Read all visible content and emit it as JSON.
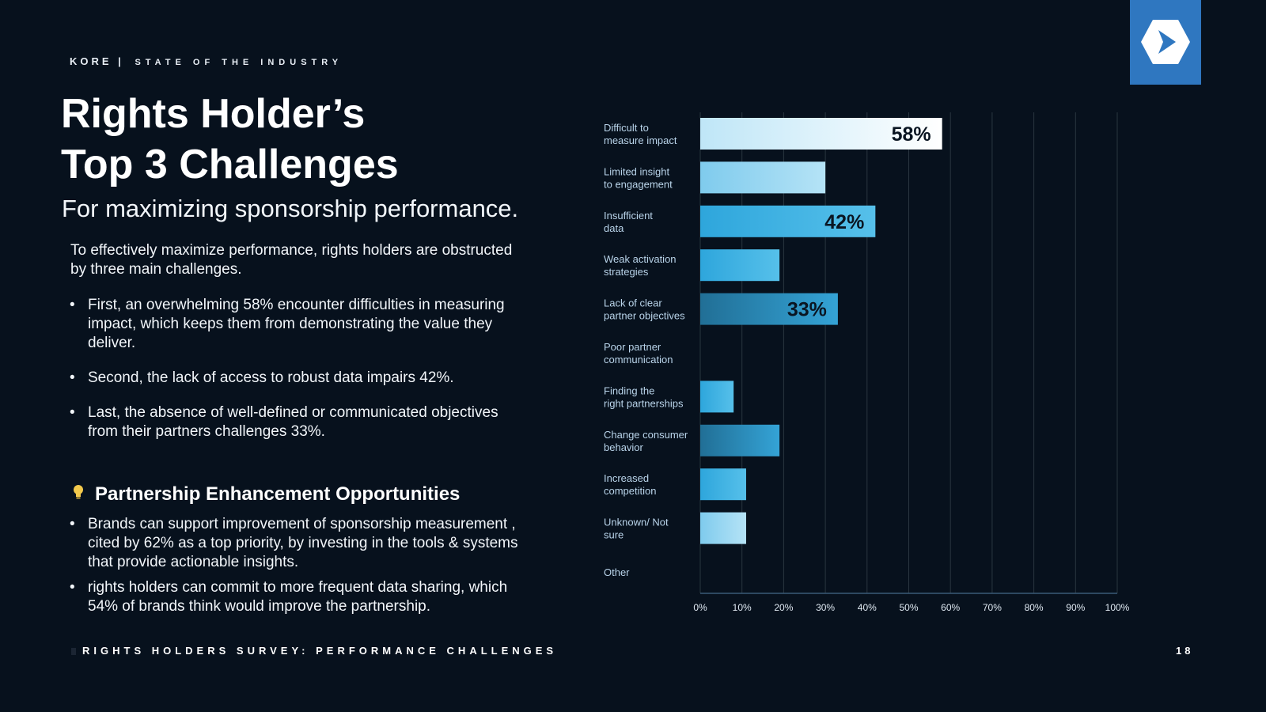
{
  "header": {
    "brand": "KORE |",
    "brand_sub": "STATE OF THE INDUSTRY",
    "title_line1": "Rights Holder’s",
    "title_line2": "Top 3 Challenges",
    "subtitle": "For maximizing sponsorship performance."
  },
  "intro": "To effectively maximize performance, rights holders are obstructed by three main challenges.",
  "challenges": [
    "First, an overwhelming 58% encounter difficulties in measuring impact, which keeps them from demonstrating the value they deliver.",
    "Second, the lack of access to robust data impairs 42%.",
    "Last, the absence of well-defined or communicated objectives from their partners challenges 33%."
  ],
  "opportunities": {
    "heading": "Partnership Enhancement Opportunities",
    "icon": "lightbulb-icon",
    "items": [
      "Brands can support improvement of sponsorship measurement , cited by 62% as a top priority, by investing in the tools & systems that provide actionable insights.",
      "rights holders can commit to more frequent data sharing, which 54% of brands think would improve the partnership."
    ]
  },
  "footer": {
    "section": "RIGHTS HOLDERS SURVEY:   PERFORMANCE CHALLENGES",
    "page": "18"
  },
  "logo": {
    "icon": "kore-hexagon-logo-icon",
    "color": "#2f77c0"
  },
  "chart_data": {
    "type": "bar",
    "orientation": "horizontal",
    "categories": [
      "Difficult to measure impact",
      "Limited insight to engagement",
      "Insufficient data",
      "Weak activation strategies",
      "Lack of clear partner objectives",
      "Poor partner communication",
      "Finding the right partnerships",
      "Change consumer behavior",
      "Increased competition",
      "Unknown/ Not sure",
      "Other"
    ],
    "values": [
      58,
      30,
      42,
      19,
      33,
      0,
      8,
      19,
      11,
      11,
      0
    ],
    "data_labels": [
      "58%",
      "",
      "42%",
      "",
      "33%",
      "",
      "",
      "",
      "",
      "",
      ""
    ],
    "xlim": [
      0,
      100
    ],
    "xticks": [
      "0%",
      "10%",
      "20%",
      "30%",
      "40%",
      "50%",
      "60%",
      "70%",
      "80%",
      "90%",
      "100%"
    ],
    "grid": true,
    "colors": {
      "highlight_1": "#d9f0fb",
      "bar_light": "#8fd3f0",
      "bar_mid": "#35aee0",
      "bar_dark": "#2a7fa8",
      "grid": "#2a3640",
      "axis_text": "#dfe9f2",
      "label_text": "#b9d4ea"
    }
  }
}
